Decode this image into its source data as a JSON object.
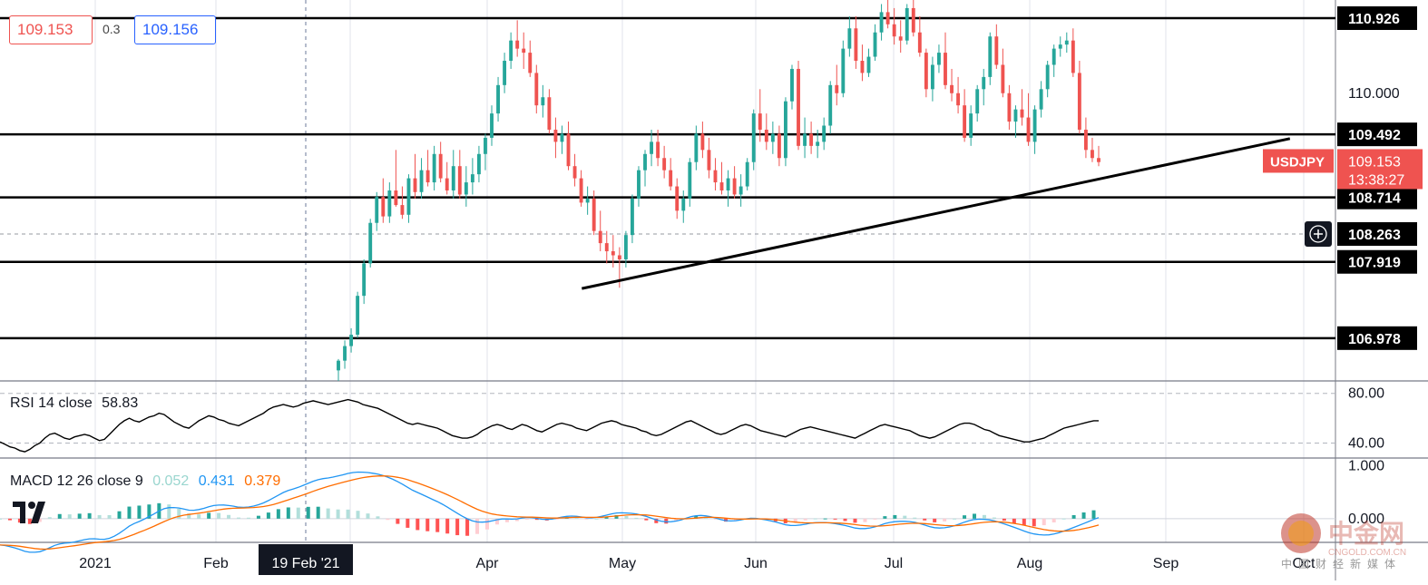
{
  "header": {
    "bid": "109.153",
    "spread": "0.3",
    "ask": "109.156"
  },
  "chart_data": {
    "type": "candlestick",
    "symbol": "USDJPY",
    "current_price": "109.153",
    "countdown": "13:38:27",
    "x_tick_labels": [
      "2021",
      "Feb",
      "Apr",
      "May",
      "Jun",
      "Jul",
      "Aug",
      "Sep",
      "Oct"
    ],
    "crosshair_date_label": "19 Feb '21",
    "y_tick_labels": [
      "110.000"
    ],
    "horizontal_levels": [
      "110.926",
      "109.492",
      "108.714",
      "108.263",
      "107.919",
      "106.978"
    ],
    "trendline": {
      "start": {
        "date": "2021-04-22",
        "price": 107.59
      },
      "end": {
        "date": "2021-09-28",
        "price": 109.44
      }
    },
    "ylim": [
      106.45,
      111.15
    ],
    "candles_ohlc": [
      [
        106.58,
        106.72,
        106.45,
        106.7
      ],
      [
        106.7,
        106.95,
        106.6,
        106.88
      ],
      [
        106.88,
        107.1,
        106.8,
        107.02
      ],
      [
        107.02,
        107.55,
        106.98,
        107.5
      ],
      [
        107.5,
        107.95,
        107.4,
        107.9
      ],
      [
        107.9,
        108.45,
        107.85,
        108.4
      ],
      [
        108.4,
        108.78,
        108.3,
        108.72
      ],
      [
        108.72,
        108.95,
        108.4,
        108.48
      ],
      [
        108.48,
        108.9,
        108.4,
        108.8
      ],
      [
        108.8,
        109.3,
        108.6,
        108.62
      ],
      [
        108.62,
        108.85,
        108.45,
        108.5
      ],
      [
        108.5,
        109.0,
        108.4,
        108.95
      ],
      [
        108.95,
        109.25,
        108.7,
        108.78
      ],
      [
        108.78,
        109.2,
        108.7,
        109.05
      ],
      [
        109.05,
        109.3,
        108.85,
        108.9
      ],
      [
        108.9,
        109.35,
        108.8,
        109.25
      ],
      [
        109.25,
        109.4,
        108.9,
        108.95
      ],
      [
        108.95,
        109.15,
        108.75,
        108.8
      ],
      [
        108.8,
        109.3,
        108.7,
        109.1
      ],
      [
        109.1,
        109.3,
        108.7,
        108.75
      ],
      [
        108.75,
        109.1,
        108.6,
        108.9
      ],
      [
        108.9,
        109.2,
        108.75,
        109.0
      ],
      [
        109.0,
        109.35,
        108.9,
        109.25
      ],
      [
        109.25,
        109.5,
        109.05,
        109.45
      ],
      [
        109.45,
        109.85,
        109.35,
        109.75
      ],
      [
        109.75,
        110.2,
        109.65,
        110.1
      ],
      [
        110.1,
        110.5,
        110.0,
        110.4
      ],
      [
        110.4,
        110.75,
        110.3,
        110.65
      ],
      [
        110.65,
        110.9,
        110.45,
        110.55
      ],
      [
        110.55,
        110.75,
        110.3,
        110.5
      ],
      [
        110.5,
        110.65,
        110.2,
        110.25
      ],
      [
        110.25,
        110.35,
        109.75,
        109.85
      ],
      [
        109.85,
        110.1,
        109.7,
        109.95
      ],
      [
        109.95,
        110.05,
        109.5,
        109.55
      ],
      [
        109.55,
        109.7,
        109.2,
        109.4
      ],
      [
        109.4,
        109.6,
        109.25,
        109.5
      ],
      [
        109.5,
        109.65,
        109.05,
        109.1
      ],
      [
        109.1,
        109.25,
        108.85,
        108.95
      ],
      [
        108.95,
        109.05,
        108.6,
        108.65
      ],
      [
        108.65,
        108.85,
        108.5,
        108.7
      ],
      [
        108.7,
        108.8,
        108.25,
        108.3
      ],
      [
        108.3,
        108.55,
        108.05,
        108.15
      ],
      [
        108.15,
        108.3,
        107.9,
        108.05
      ],
      [
        108.05,
        108.25,
        107.85,
        108.0
      ],
      [
        108.0,
        108.1,
        107.6,
        107.95
      ],
      [
        107.95,
        108.3,
        107.85,
        108.25
      ],
      [
        108.25,
        108.75,
        108.15,
        108.7
      ],
      [
        108.7,
        109.1,
        108.6,
        109.05
      ],
      [
        109.05,
        109.3,
        108.85,
        109.25
      ],
      [
        109.25,
        109.55,
        109.1,
        109.4
      ],
      [
        109.4,
        109.55,
        109.1,
        109.2
      ],
      [
        109.2,
        109.35,
        108.95,
        109.05
      ],
      [
        109.05,
        109.2,
        108.8,
        108.85
      ],
      [
        108.85,
        108.95,
        108.45,
        108.55
      ],
      [
        108.55,
        108.8,
        108.4,
        108.7
      ],
      [
        108.7,
        109.2,
        108.6,
        109.15
      ],
      [
        109.15,
        109.6,
        109.05,
        109.5
      ],
      [
        109.5,
        109.65,
        109.2,
        109.3
      ],
      [
        109.3,
        109.45,
        108.95,
        109.05
      ],
      [
        109.05,
        109.2,
        108.8,
        108.9
      ],
      [
        108.9,
        109.15,
        108.75,
        108.8
      ],
      [
        108.8,
        109.05,
        108.6,
        108.95
      ],
      [
        108.95,
        109.1,
        108.7,
        108.75
      ],
      [
        108.75,
        109.0,
        108.6,
        108.85
      ],
      [
        108.85,
        109.2,
        108.8,
        109.15
      ],
      [
        109.15,
        109.8,
        109.05,
        109.75
      ],
      [
        109.75,
        110.05,
        109.4,
        109.55
      ],
      [
        109.55,
        109.75,
        109.3,
        109.4
      ],
      [
        109.4,
        109.65,
        109.25,
        109.5
      ],
      [
        109.5,
        109.6,
        109.1,
        109.2
      ],
      [
        109.2,
        109.95,
        109.1,
        109.9
      ],
      [
        109.9,
        110.35,
        109.8,
        110.3
      ],
      [
        110.3,
        110.4,
        109.3,
        109.35
      ],
      [
        109.35,
        109.7,
        109.2,
        109.5
      ],
      [
        109.5,
        109.65,
        109.25,
        109.35
      ],
      [
        109.35,
        109.55,
        109.2,
        109.4
      ],
      [
        109.4,
        109.7,
        109.3,
        109.6
      ],
      [
        109.6,
        110.15,
        109.5,
        110.1
      ],
      [
        110.1,
        110.35,
        109.85,
        110.0
      ],
      [
        110.0,
        110.65,
        109.95,
        110.55
      ],
      [
        110.55,
        110.95,
        110.45,
        110.8
      ],
      [
        110.8,
        110.95,
        110.3,
        110.4
      ],
      [
        110.4,
        110.6,
        110.15,
        110.25
      ],
      [
        110.25,
        110.55,
        110.2,
        110.45
      ],
      [
        110.45,
        110.85,
        110.4,
        110.75
      ],
      [
        110.75,
        111.1,
        110.65,
        111.0
      ],
      [
        111.0,
        111.15,
        110.8,
        110.85
      ],
      [
        110.85,
        111.05,
        110.6,
        110.7
      ],
      [
        110.7,
        110.9,
        110.5,
        110.65
      ],
      [
        110.65,
        111.1,
        110.6,
        111.05
      ],
      [
        111.05,
        111.15,
        110.7,
        110.75
      ],
      [
        110.75,
        110.95,
        110.45,
        110.5
      ],
      [
        110.5,
        110.55,
        109.95,
        110.05
      ],
      [
        110.05,
        110.45,
        109.9,
        110.35
      ],
      [
        110.35,
        110.6,
        110.25,
        110.5
      ],
      [
        110.5,
        110.75,
        110.05,
        110.1
      ],
      [
        110.1,
        110.3,
        109.9,
        110.0
      ],
      [
        110.0,
        110.2,
        109.75,
        109.85
      ],
      [
        109.85,
        110.05,
        109.4,
        109.45
      ],
      [
        109.45,
        109.85,
        109.35,
        109.75
      ],
      [
        109.75,
        110.1,
        109.65,
        110.05
      ],
      [
        110.05,
        110.3,
        109.85,
        110.2
      ],
      [
        110.2,
        110.75,
        110.1,
        110.7
      ],
      [
        110.7,
        110.85,
        110.3,
        110.35
      ],
      [
        110.35,
        110.55,
        109.95,
        110.0
      ],
      [
        110.0,
        110.1,
        109.55,
        109.65
      ],
      [
        109.65,
        109.85,
        109.45,
        109.8
      ],
      [
        109.8,
        110.05,
        109.6,
        109.7
      ],
      [
        109.7,
        110.0,
        109.35,
        109.4
      ],
      [
        109.4,
        109.85,
        109.25,
        109.8
      ],
      [
        109.8,
        110.15,
        109.7,
        110.05
      ],
      [
        110.05,
        110.4,
        109.95,
        110.35
      ],
      [
        110.35,
        110.6,
        110.2,
        110.55
      ],
      [
        110.55,
        110.7,
        110.45,
        110.6
      ],
      [
        110.6,
        110.75,
        110.5,
        110.65
      ],
      [
        110.65,
        110.8,
        110.2,
        110.25
      ],
      [
        110.25,
        110.4,
        109.5,
        109.55
      ],
      [
        109.55,
        109.7,
        109.2,
        109.3
      ],
      [
        109.3,
        109.45,
        109.15,
        109.2
      ],
      [
        109.2,
        109.35,
        109.1,
        109.15
      ]
    ],
    "rsi": {
      "label": "RSI 14 close",
      "value": "58.83",
      "levels": [
        "80.00",
        "40.00"
      ],
      "ylim": [
        28,
        90
      ],
      "values": [
        41,
        39,
        37,
        36,
        34,
        33,
        35,
        38,
        40,
        44,
        47,
        48,
        46,
        44,
        43,
        45,
        46,
        47,
        46,
        44,
        42,
        43,
        47,
        51,
        55,
        58,
        60,
        58,
        57,
        59,
        61,
        62,
        64,
        63,
        60,
        57,
        55,
        53,
        52,
        55,
        58,
        60,
        62,
        61,
        59,
        58,
        56,
        55,
        54,
        56,
        58,
        60,
        62,
        64,
        67,
        69,
        70,
        71,
        70,
        69,
        70,
        72,
        73,
        74,
        73,
        72,
        71,
        72,
        73,
        74,
        75,
        74,
        73,
        71,
        70,
        69,
        68,
        66,
        64,
        62,
        60,
        58,
        56,
        55,
        56,
        55,
        54,
        53,
        52,
        50,
        48,
        46,
        45,
        44,
        44,
        45,
        47,
        50,
        52,
        54,
        55,
        54,
        52,
        51,
        53,
        55,
        54,
        52,
        50,
        49,
        51,
        53,
        55,
        56,
        55,
        54,
        52,
        51,
        50,
        52,
        54,
        56,
        57,
        58,
        57,
        55,
        54,
        53,
        52,
        50,
        49,
        47,
        46,
        47,
        49,
        51,
        53,
        55,
        57,
        58,
        56,
        54,
        52,
        50,
        48,
        47,
        48,
        50,
        52,
        54,
        55,
        54,
        52,
        50,
        49,
        48,
        47,
        46,
        45,
        47,
        49,
        51,
        52,
        53,
        52,
        51,
        50,
        49,
        48,
        47,
        46,
        45,
        44,
        46,
        48,
        50,
        52,
        54,
        55,
        54,
        53,
        52,
        51,
        50,
        48,
        46,
        45,
        44,
        45,
        47,
        49,
        51,
        53,
        55,
        56,
        56,
        55,
        53,
        51,
        50,
        48,
        46,
        45,
        44,
        43,
        42,
        41,
        41,
        42,
        43,
        44,
        46,
        48,
        50,
        52,
        53,
        54,
        55,
        56,
        57,
        58,
        58
      ]
    },
    "macd": {
      "label": "MACD 12 26 close 9",
      "histogram": "0.052",
      "macd": "0.431",
      "signal": "0.379",
      "levels": [
        "1.000",
        "0.000"
      ],
      "ylim": [
        -0.45,
        1.15
      ]
    }
  },
  "watermark": {
    "name": "中金网",
    "domain": "CNGOLD.COM.CN",
    "tagline": "中国财经新媒体"
  },
  "colors": {
    "up": "#26a69a",
    "down": "#ef5350",
    "rsi_line": "#000000",
    "macd_line": "#2196f3",
    "signal_line": "#ff6d00",
    "hist_up_strong": "#26a69a",
    "hist_up_weak": "#b2dfdb",
    "hist_down_strong": "#ff5252",
    "hist_down_weak": "#ffcdd2",
    "symbol_badge": "#ef5350",
    "watermark": "#c0392b"
  },
  "icons": [
    "tradingview-logo-icon",
    "crosshair-plus-icon",
    "brand-watermark-icon"
  ]
}
